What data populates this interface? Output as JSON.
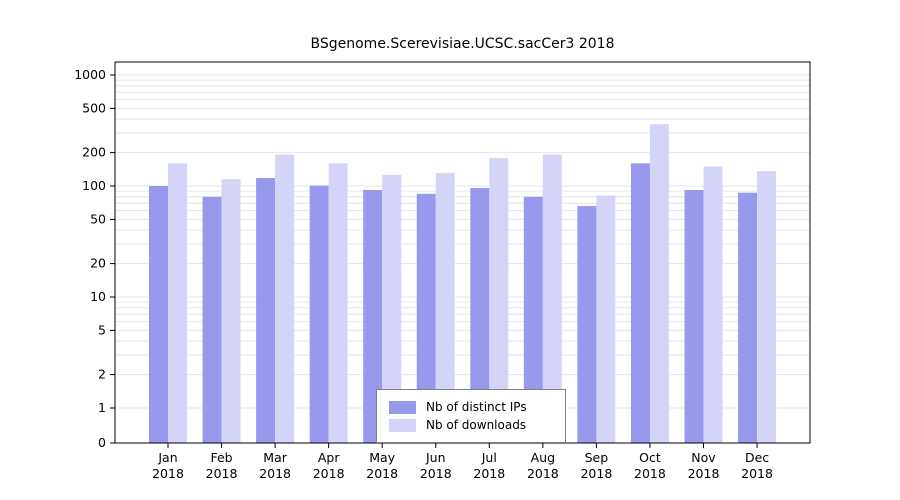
{
  "chart_data": {
    "type": "bar",
    "title": "BSgenome.Scerevisiae.UCSC.sacCer3 2018",
    "categories": [
      "Jan",
      "Feb",
      "Mar",
      "Apr",
      "May",
      "Jun",
      "Jul",
      "Aug",
      "Sep",
      "Oct",
      "Nov",
      "Dec"
    ],
    "year_label": "2018",
    "series": [
      {
        "name": "Nb of distinct IPs",
        "color": "#9898ec",
        "values": [
          100,
          80,
          118,
          101,
          92,
          85,
          96,
          80,
          66,
          160,
          92,
          87
        ]
      },
      {
        "name": "Nb of downloads",
        "color": "#d4d4f8",
        "values": [
          160,
          115,
          192,
          160,
          126,
          131,
          178,
          192,
          82,
          360,
          150,
          136
        ]
      }
    ],
    "y_ticks": [
      0,
      1,
      2,
      5,
      10,
      20,
      50,
      100,
      200,
      500,
      1000
    ],
    "y_scale": "log",
    "ylim": [
      0,
      1000
    ],
    "grid": true,
    "grid_color": "#e6e6e6",
    "legend_position": "bottom-center"
  }
}
